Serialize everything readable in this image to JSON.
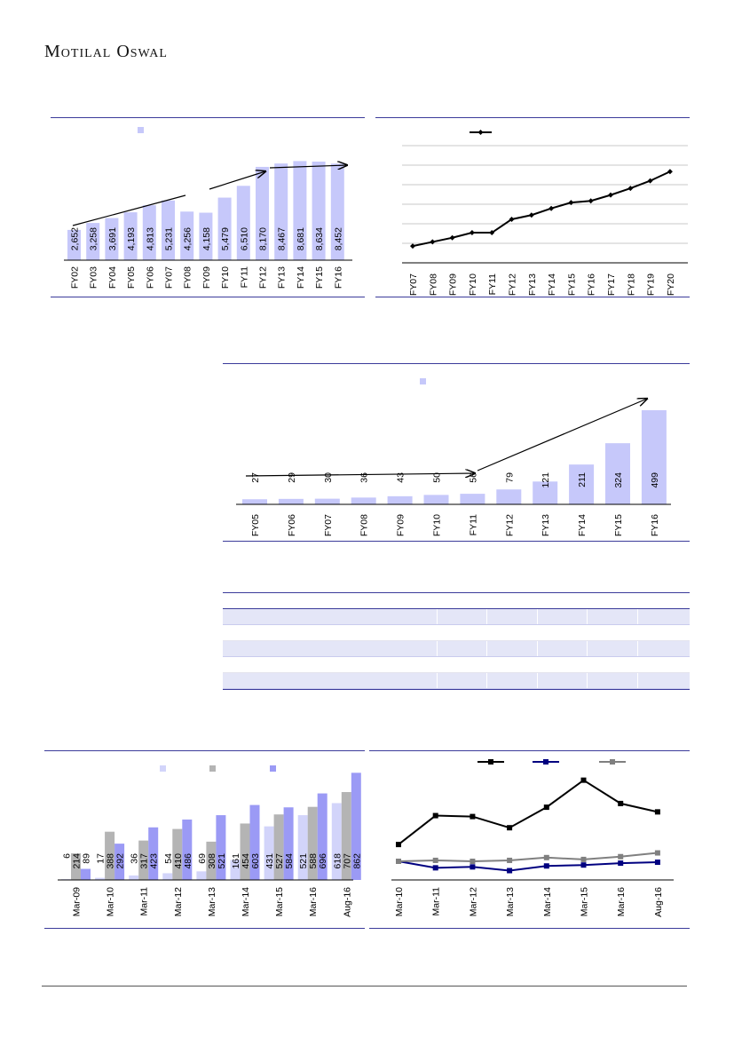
{
  "header": {
    "brand": "Motilal Oswal"
  },
  "chart_data": [
    {
      "id": "c1",
      "type": "bar",
      "categories": [
        "FY02",
        "FY03",
        "FY04",
        "FY05",
        "FY06",
        "FY07",
        "FY08",
        "FY09",
        "FY10",
        "FY11",
        "FY12",
        "FY13",
        "FY14",
        "FY15",
        "FY16"
      ],
      "values": [
        2652,
        3258,
        3691,
        4193,
        4813,
        5231,
        4256,
        4158,
        5479,
        6510,
        8170,
        8467,
        8681,
        8634,
        8452
      ],
      "value_labels": [
        "2,652",
        "3,258",
        "3,691",
        "4,193",
        "4,813",
        "5,231",
        "4,256",
        "4,158",
        "5,479",
        "6,510",
        "8,170",
        "8,467",
        "8,681",
        "8,634",
        "8,452"
      ],
      "ylim": [
        0,
        10500
      ],
      "color": "#c6c8fa",
      "legend": "top-left"
    },
    {
      "id": "c2",
      "type": "line",
      "categories": [
        "FY07",
        "FY08",
        "FY09",
        "FY10",
        "FY11",
        "FY12",
        "FY13",
        "FY14",
        "FY15",
        "FY16",
        "FY17",
        "FY18",
        "FY19",
        "FY20"
      ],
      "values": [
        2.0,
        2.5,
        3.0,
        3.6,
        3.6,
        5.2,
        5.7,
        6.5,
        7.2,
        7.4,
        8.1,
        8.9,
        9.8,
        10.9
      ],
      "ylim": [
        0,
        14
      ],
      "grid": true,
      "color": "#000000",
      "legend": "top-center"
    },
    {
      "id": "c3",
      "type": "bar",
      "categories": [
        "FY05",
        "FY06",
        "FY07",
        "FY08",
        "FY09",
        "FY10",
        "FY11",
        "FY12",
        "FY13",
        "FY14",
        "FY15",
        "FY16"
      ],
      "values": [
        27,
        29,
        30,
        36,
        43,
        50,
        56,
        79,
        121,
        211,
        324,
        499
      ],
      "value_labels": [
        "27",
        "29",
        "30",
        "36",
        "43",
        "50",
        "56",
        "79",
        "121",
        "211",
        "324",
        "499"
      ],
      "ylim": [
        0,
        560
      ],
      "color": "#c6c8fa",
      "legend": "top-center"
    },
    {
      "id": "c4",
      "type": "bar",
      "categories": [
        "Mar-09",
        "Mar-10",
        "Mar-11",
        "Mar-12",
        "Mar-13",
        "Mar-14",
        "Mar-15",
        "Mar-16",
        "Aug-16"
      ],
      "series": [
        {
          "values": [
            6,
            17,
            36,
            54,
            69,
            161,
            431,
            521,
            618
          ],
          "color": "#d2d4fa"
        },
        {
          "values": [
            214,
            388,
            317,
            410,
            308,
            454,
            527,
            588,
            707
          ],
          "color": "#b4b4b4"
        },
        {
          "values": [
            89,
            292,
            423,
            486,
            521,
            603,
            584,
            696,
            862
          ],
          "color": "#9b9af5"
        }
      ],
      "ylim": [
        0,
        900
      ],
      "legend": "top-center"
    },
    {
      "id": "c5",
      "type": "line",
      "categories": [
        "Mar-10",
        "Mar-11",
        "Mar-12",
        "Mar-13",
        "Mar-14",
        "Mar-15",
        "Mar-16",
        "Aug-16"
      ],
      "series": [
        {
          "values": [
            38,
            69,
            68,
            56,
            78,
            107,
            82,
            73
          ],
          "color": "#000000"
        },
        {
          "values": [
            20,
            13,
            14,
            10,
            15,
            16,
            18,
            19
          ],
          "color": "#000080"
        },
        {
          "values": [
            20,
            21,
            20,
            21,
            24,
            22,
            25,
            29
          ],
          "color": "#808080"
        }
      ],
      "ylim": [
        0,
        120
      ],
      "legend": "top-center"
    }
  ]
}
